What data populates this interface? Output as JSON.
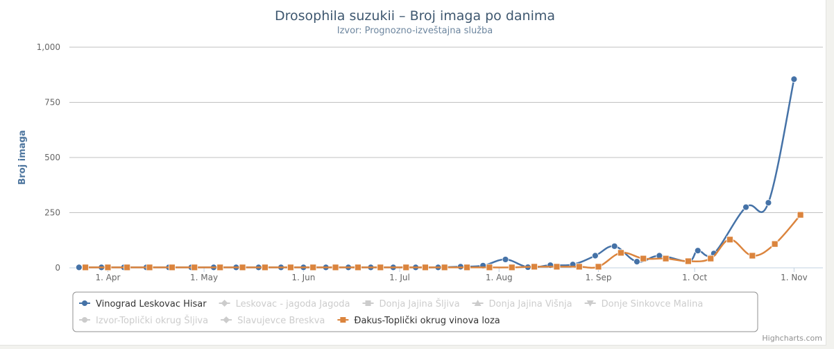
{
  "chart_data": {
    "type": "line",
    "title": "Drosophila suzukii – Broj imaga po danima",
    "subtitle": "Izvor: Prognozno-izveštajna služba",
    "ylabel": "Broj imaga",
    "xlabel": "",
    "ylim": [
      0,
      1000
    ],
    "y_ticks": [
      "0",
      "250",
      "500",
      "750",
      "1,000"
    ],
    "x_ticks": [
      "1. Apr",
      "1. May",
      "1. Jun",
      "1. Jul",
      "1. Aug",
      "1. Sep",
      "1. Oct",
      "1. Nov"
    ],
    "x_range": [
      "2019-03-20",
      "2019-11-10"
    ],
    "grid": true,
    "legend_position": "bottom",
    "series": [
      {
        "name": "Vinograd Leskovac Hisar",
        "color": "#4572a7",
        "marker": "circle",
        "visible": true,
        "points": [
          [
            "2019-03-23",
            2
          ],
          [
            "2019-03-30",
            2
          ],
          [
            "2019-04-06",
            2
          ],
          [
            "2019-04-13",
            2
          ],
          [
            "2019-04-20",
            2
          ],
          [
            "2019-04-27",
            2
          ],
          [
            "2019-05-04",
            2
          ],
          [
            "2019-05-11",
            2
          ],
          [
            "2019-05-18",
            2
          ],
          [
            "2019-05-25",
            2
          ],
          [
            "2019-06-01",
            2
          ],
          [
            "2019-06-08",
            2
          ],
          [
            "2019-06-15",
            2
          ],
          [
            "2019-06-22",
            2
          ],
          [
            "2019-06-29",
            2
          ],
          [
            "2019-07-06",
            2
          ],
          [
            "2019-07-13",
            2
          ],
          [
            "2019-07-20",
            5
          ],
          [
            "2019-07-27",
            10
          ],
          [
            "2019-08-03",
            38
          ],
          [
            "2019-08-10",
            3
          ],
          [
            "2019-08-17",
            12
          ],
          [
            "2019-08-24",
            15
          ],
          [
            "2019-08-31",
            55
          ],
          [
            "2019-09-06",
            98
          ],
          [
            "2019-09-13",
            28
          ],
          [
            "2019-09-20",
            55
          ],
          [
            "2019-09-29",
            30
          ],
          [
            "2019-10-02",
            78
          ],
          [
            "2019-10-07",
            65
          ],
          [
            "2019-10-17",
            275
          ],
          [
            "2019-10-24",
            295
          ],
          [
            "2019-11-01",
            855
          ]
        ]
      },
      {
        "name": "Leskovac - jagoda Jagoda",
        "color": "#cccccc",
        "marker": "diamond",
        "visible": false,
        "points": []
      },
      {
        "name": "Donja Jajina Šljiva",
        "color": "#cccccc",
        "marker": "square",
        "visible": false,
        "points": []
      },
      {
        "name": "Donja Jajina Višnja",
        "color": "#cccccc",
        "marker": "triangle",
        "visible": false,
        "points": []
      },
      {
        "name": "Donje Sinkovce Malina",
        "color": "#cccccc",
        "marker": "triangle-down",
        "visible": false,
        "points": []
      },
      {
        "name": "Izvor-Toplički okrug Šljiva",
        "color": "#cccccc",
        "marker": "circle",
        "visible": false,
        "points": []
      },
      {
        "name": "Slavujevce Breskva",
        "color": "#cccccc",
        "marker": "diamond",
        "visible": false,
        "points": []
      },
      {
        "name": "Đakus-Toplički okrug vinova loza",
        "color": "#db843d",
        "marker": "square",
        "visible": true,
        "points": [
          [
            "2019-03-25",
            2
          ],
          [
            "2019-04-01",
            2
          ],
          [
            "2019-04-07",
            2
          ],
          [
            "2019-04-14",
            2
          ],
          [
            "2019-04-21",
            2
          ],
          [
            "2019-04-28",
            2
          ],
          [
            "2019-05-06",
            2
          ],
          [
            "2019-05-13",
            2
          ],
          [
            "2019-05-20",
            2
          ],
          [
            "2019-05-28",
            2
          ],
          [
            "2019-06-04",
            2
          ],
          [
            "2019-06-11",
            2
          ],
          [
            "2019-06-18",
            2
          ],
          [
            "2019-06-25",
            2
          ],
          [
            "2019-07-03",
            2
          ],
          [
            "2019-07-09",
            2
          ],
          [
            "2019-07-15",
            2
          ],
          [
            "2019-07-22",
            2
          ],
          [
            "2019-07-29",
            2
          ],
          [
            "2019-08-05",
            2
          ],
          [
            "2019-08-12",
            5
          ],
          [
            "2019-08-19",
            5
          ],
          [
            "2019-08-26",
            5
          ],
          [
            "2019-09-01",
            5
          ],
          [
            "2019-09-08",
            68
          ],
          [
            "2019-09-15",
            42
          ],
          [
            "2019-09-22",
            42
          ],
          [
            "2019-09-29",
            30
          ],
          [
            "2019-10-06",
            42
          ],
          [
            "2019-10-12",
            128
          ],
          [
            "2019-10-19",
            55
          ],
          [
            "2019-10-26",
            108
          ],
          [
            "2019-11-03",
            240
          ]
        ]
      }
    ]
  },
  "credits": "Highcharts.com"
}
